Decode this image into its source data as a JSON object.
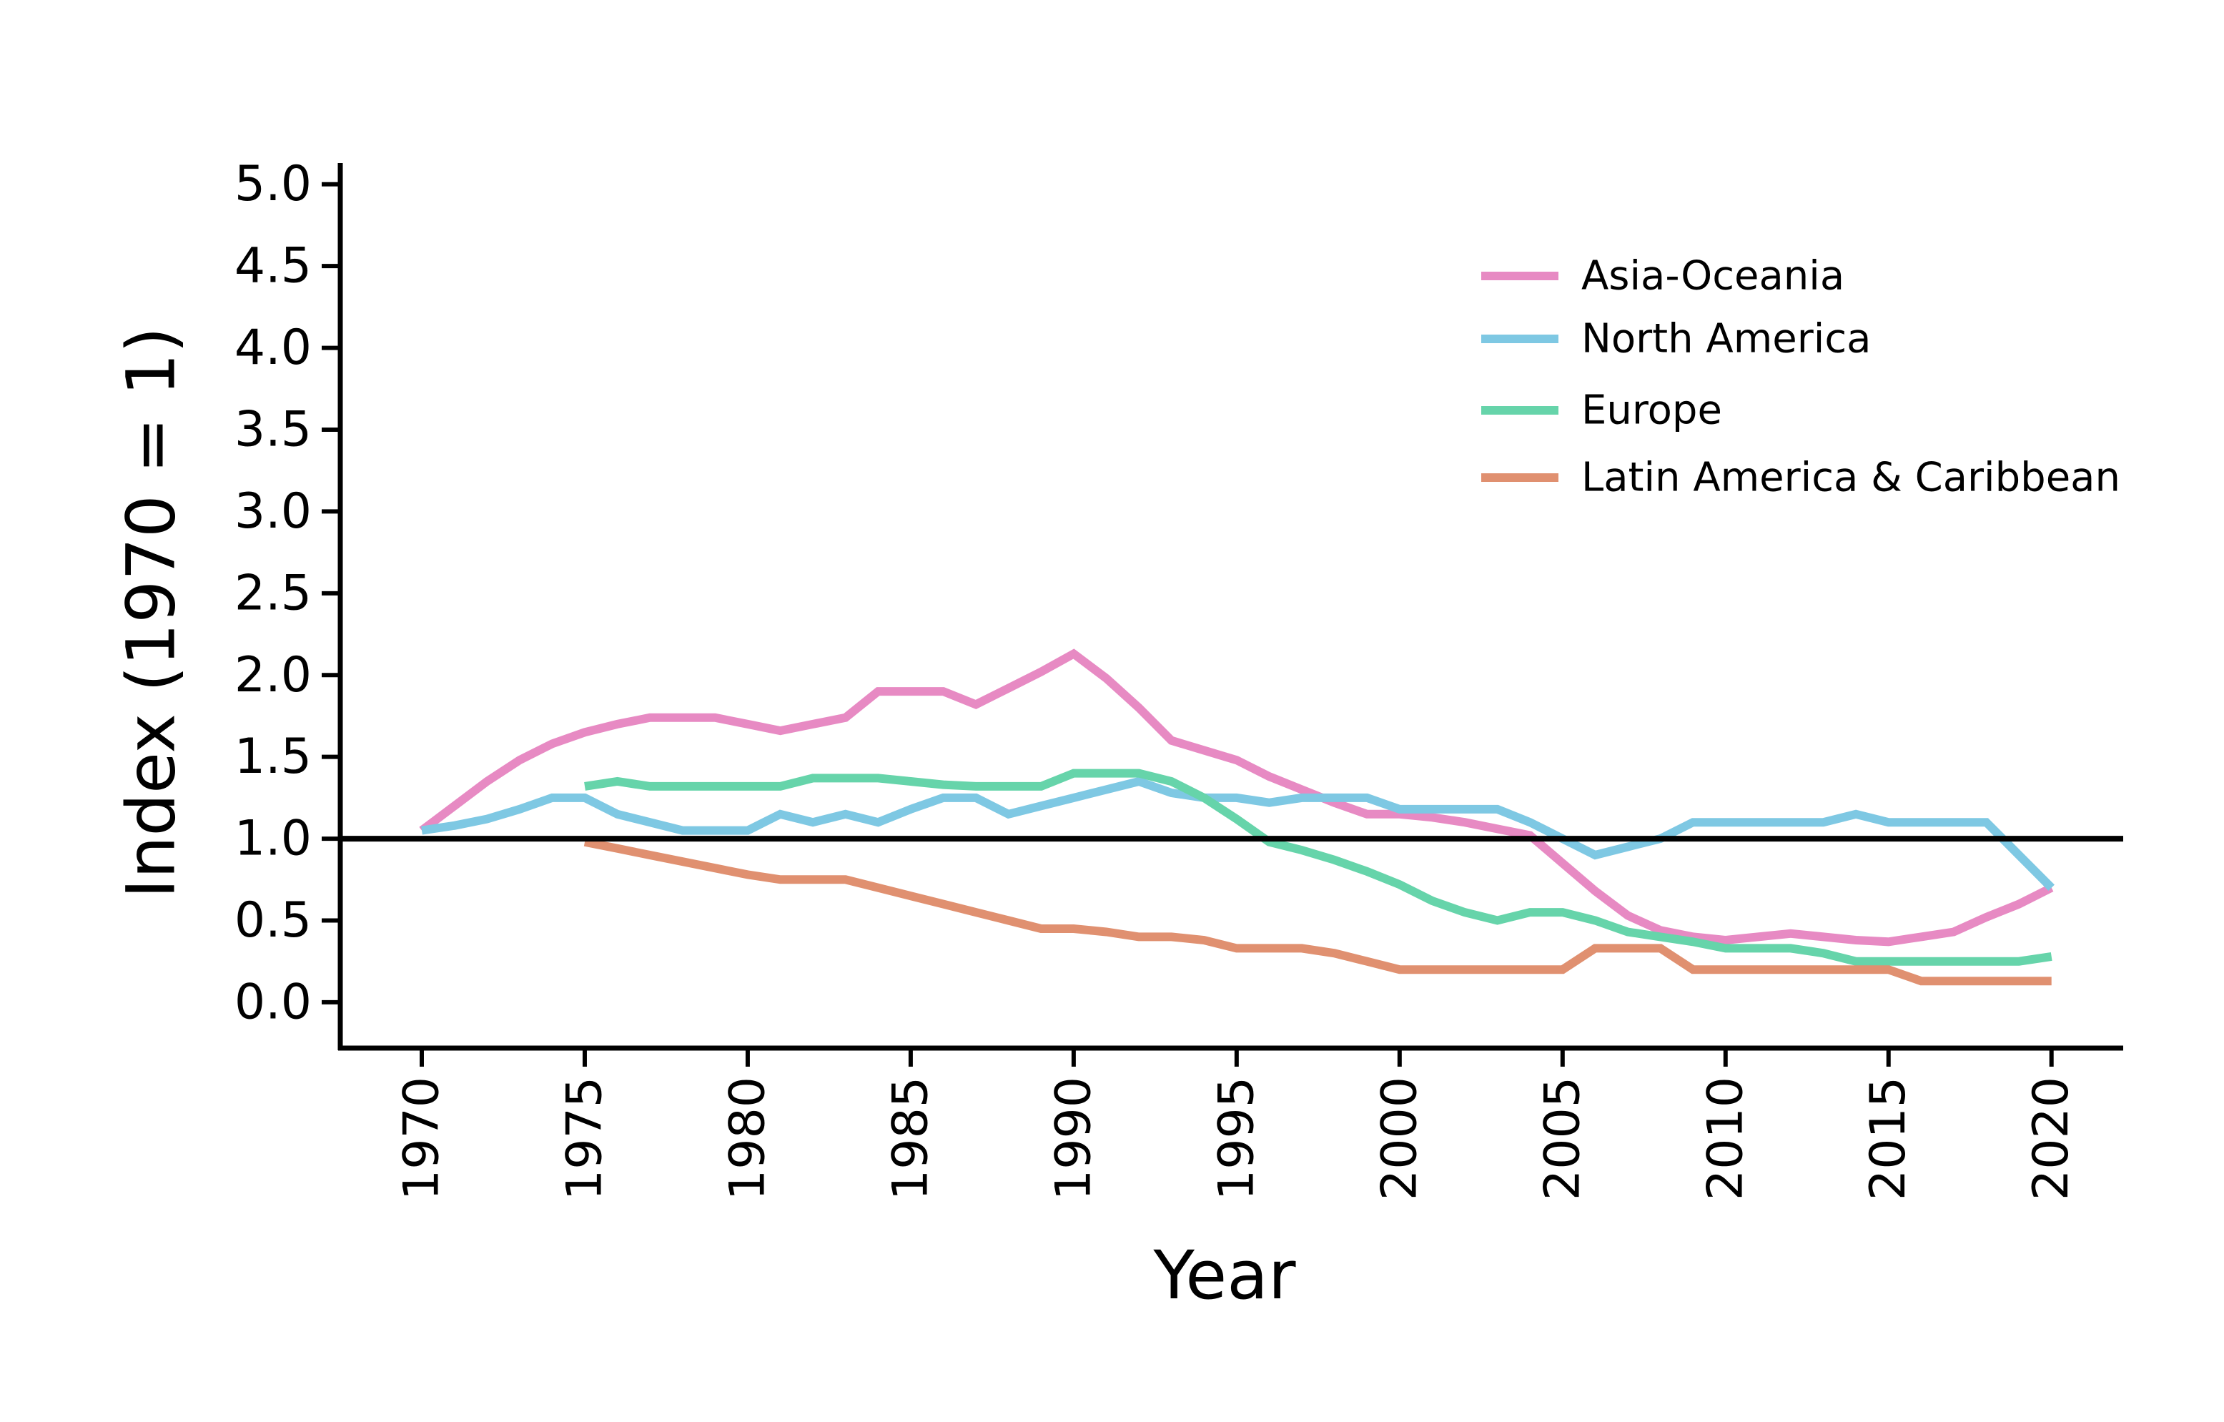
{
  "chart_data": {
    "type": "line",
    "title": "",
    "xlabel": "Year",
    "ylabel": "Index (1970 = 1)",
    "xlim": [
      1967.5,
      2022.2
    ],
    "ylim": [
      -0.28,
      5.13
    ],
    "xticks": [
      1970,
      1975,
      1980,
      1985,
      1990,
      1995,
      2000,
      2005,
      2010,
      2015,
      2020
    ],
    "yticks": [
      0.0,
      0.5,
      1.0,
      1.5,
      2.0,
      2.5,
      3.0,
      3.5,
      4.0,
      4.5,
      5.0
    ],
    "ytick_labels": [
      "0.0",
      "0.5",
      "1.0",
      "1.5",
      "2.0",
      "2.5",
      "3.0",
      "3.5",
      "4.0",
      "4.5",
      "5.0"
    ],
    "reference_line": {
      "y": 1.0,
      "color": "#000000"
    },
    "grid": false,
    "legend_position": "top-right",
    "series": [
      {
        "name": "Asia-Oceania",
        "color": "#e78ac3",
        "x": [
          1970,
          1971,
          1972,
          1973,
          1974,
          1975,
          1976,
          1977,
          1978,
          1979,
          1980,
          1981,
          1982,
          1983,
          1984,
          1985,
          1986,
          1987,
          1988,
          1989,
          1990,
          1991,
          1992,
          1993,
          1994,
          1995,
          1996,
          1997,
          1998,
          1999,
          2000,
          2001,
          2002,
          2003,
          2004,
          2005,
          2006,
          2007,
          2008,
          2009,
          2010,
          2011,
          2012,
          2013,
          2014,
          2015,
          2016,
          2017,
          2018,
          2019,
          2020
        ],
        "y": [
          1.05,
          1.2,
          1.35,
          1.48,
          1.58,
          1.65,
          1.7,
          1.74,
          1.74,
          1.74,
          1.7,
          1.66,
          1.7,
          1.74,
          1.9,
          1.9,
          1.9,
          1.82,
          1.92,
          2.02,
          2.13,
          1.98,
          1.8,
          1.6,
          1.54,
          1.48,
          1.38,
          1.3,
          1.22,
          1.15,
          1.15,
          1.13,
          1.1,
          1.06,
          1.02,
          0.85,
          0.68,
          0.53,
          0.44,
          0.4,
          0.38,
          0.4,
          0.42,
          0.4,
          0.38,
          0.37,
          0.4,
          0.43,
          0.52,
          0.6,
          0.7
        ]
      },
      {
        "name": "North America",
        "color": "#7ec8e3",
        "x": [
          1970,
          1971,
          1972,
          1973,
          1974,
          1975,
          1976,
          1977,
          1978,
          1979,
          1980,
          1981,
          1982,
          1983,
          1984,
          1985,
          1986,
          1987,
          1988,
          1989,
          1990,
          1991,
          1992,
          1993,
          1994,
          1995,
          1996,
          1997,
          1998,
          1999,
          2000,
          2001,
          2002,
          2003,
          2004,
          2005,
          2006,
          2007,
          2008,
          2009,
          2010,
          2011,
          2012,
          2013,
          2014,
          2015,
          2016,
          2017,
          2018,
          2019,
          2020
        ],
        "y": [
          1.05,
          1.08,
          1.12,
          1.18,
          1.25,
          1.25,
          1.15,
          1.1,
          1.05,
          1.05,
          1.05,
          1.15,
          1.1,
          1.15,
          1.1,
          1.18,
          1.25,
          1.25,
          1.15,
          1.2,
          1.25,
          1.3,
          1.35,
          1.28,
          1.25,
          1.25,
          1.22,
          1.25,
          1.25,
          1.25,
          1.18,
          1.18,
          1.18,
          1.18,
          1.1,
          1.0,
          0.9,
          0.95,
          1.0,
          1.1,
          1.1,
          1.1,
          1.1,
          1.1,
          1.15,
          1.1,
          1.1,
          1.1,
          1.1,
          0.9,
          0.7
        ]
      },
      {
        "name": "Europe",
        "color": "#66d4aa",
        "x": [
          1975,
          1976,
          1977,
          1978,
          1979,
          1980,
          1981,
          1982,
          1983,
          1984,
          1985,
          1986,
          1987,
          1988,
          1989,
          1990,
          1991,
          1992,
          1993,
          1994,
          1995,
          1996,
          1997,
          1998,
          1999,
          2000,
          2001,
          2002,
          2003,
          2004,
          2005,
          2006,
          2007,
          2008,
          2009,
          2010,
          2011,
          2012,
          2013,
          2014,
          2015,
          2016,
          2017,
          2018,
          2019,
          2020
        ],
        "y": [
          1.32,
          1.35,
          1.32,
          1.32,
          1.32,
          1.32,
          1.32,
          1.37,
          1.37,
          1.37,
          1.35,
          1.33,
          1.32,
          1.32,
          1.32,
          1.4,
          1.4,
          1.4,
          1.35,
          1.25,
          1.12,
          0.98,
          0.93,
          0.87,
          0.8,
          0.72,
          0.62,
          0.55,
          0.5,
          0.55,
          0.55,
          0.5,
          0.43,
          0.4,
          0.37,
          0.33,
          0.33,
          0.33,
          0.3,
          0.25,
          0.25,
          0.25,
          0.25,
          0.25,
          0.25,
          0.28
        ]
      },
      {
        "name": "Latin America & Caribbean",
        "color": "#e09070",
        "x": [
          1975,
          1976,
          1977,
          1978,
          1979,
          1980,
          1981,
          1982,
          1983,
          1984,
          1985,
          1986,
          1987,
          1988,
          1989,
          1990,
          1991,
          1992,
          1993,
          1994,
          1995,
          1996,
          1997,
          1998,
          1999,
          2000,
          2001,
          2002,
          2003,
          2004,
          2005,
          2006,
          2007,
          2008,
          2009,
          2010,
          2011,
          2012,
          2013,
          2014,
          2015,
          2016,
          2017,
          2018,
          2019,
          2020
        ],
        "y": [
          0.98,
          0.94,
          0.9,
          0.86,
          0.82,
          0.78,
          0.75,
          0.75,
          0.75,
          0.7,
          0.65,
          0.6,
          0.55,
          0.5,
          0.45,
          0.45,
          0.43,
          0.4,
          0.4,
          0.38,
          0.33,
          0.33,
          0.33,
          0.3,
          0.25,
          0.2,
          0.2,
          0.2,
          0.2,
          0.2,
          0.2,
          0.33,
          0.33,
          0.33,
          0.2,
          0.2,
          0.2,
          0.2,
          0.2,
          0.2,
          0.2,
          0.13,
          0.13,
          0.13,
          0.13,
          0.13
        ]
      }
    ]
  }
}
